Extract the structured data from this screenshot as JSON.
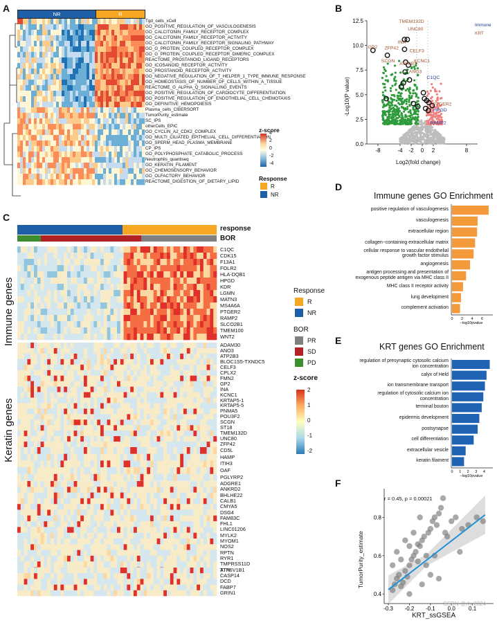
{
  "panels": {
    "A": "A",
    "B": "B",
    "C": "C",
    "D": "D",
    "E": "E",
    "F": "F"
  },
  "panelA": {
    "group_labels": [
      "NR",
      "R"
    ],
    "rows": [
      "Tgd_cells_xCell",
      "GO_POSITIVE_REGULATION_OF_VASCULOGENESIS",
      "GO_CALCITONIN_FAMILY_RECEPTOR_COMPLEX",
      "GO_CALCITONIN_FAMILY_RECEPTOR_ACTIVITY",
      "GO_CALCITONIN_FAMILY_RECEPTOR_SIGNALING_PATHWAY",
      "GO_G_PROTEIN_COUPLED_RECEPTOR_COMPLEX",
      "GO_G_PROTEIN_COUPLED_RECEPTOR_DIMERIC_COMPLEX",
      "REACTOME_PROSTANOID_LIGAND_RECEPTORS",
      "GO_ICOSANOID_RECEPTOR_ACTIVITY",
      "GO_PROSTANOID_RECEPTOR_ACTIVITY",
      "GO_NEGATIVE_REGULATION_OF_T_HELPER_1_TYPE_IMMUNE_RESPONSE",
      "GO_HOMEOSTASIS_OF_NUMBER_OF_CELLS_WITHIN_A_TISSUE",
      "REACTOME_G_ALPHA_Q_SIGNALLING_EVENTS",
      "GO_POSITIVE_REGULATION_OF_CARDIOCYTE_DIFFERENTIATION",
      "GO_POSITIVE_REGULATION_OF_ENDOTHELIAL_CELL_CHEMOTAXIS",
      "GO_DEFINITIVE_HEMOPOIESIS",
      "Plasma_cells_CIBERSORT",
      "TumorPurity_estimate",
      "SC_IPS",
      "otherCells_EPIC",
      "GO_CYCLIN_A2_CDK2_COMPLEX",
      "GO_MULTI_CILIATED_EPITHELIAL_CELL_DIFFERENTIATION",
      "GO_SPERM_HEAD_PLASMA_MEMBRANE",
      "CP_IPS",
      "GO_POLYPHOSPHATE_CATABOLIC_PROCESS",
      "Neutrophils_quantiseq",
      "GO_KERATIN_FILAMENT",
      "GO_CHEMOSENSORY_BEHAVIOR",
      "GO_OLFACTORY_BEHAVIOR",
      "REACTOME_DIGESTION_OF_DIETARY_LIPID"
    ],
    "zscore_title": "z-score",
    "zscore_ticks": [
      "4",
      "2",
      "0",
      "-2",
      "-4"
    ],
    "response_title": "Response",
    "response_items": [
      "R",
      "NR"
    ],
    "colors": {
      "R": "#F5A623",
      "NR": "#1F5FA6"
    }
  },
  "panelB": {
    "legend": [
      "Immune",
      "KRT"
    ],
    "ylabel": "-Log10(P value)",
    "xlabel": "Log2(fold change)",
    "yticks": [
      "0.0",
      "2.5",
      "5.0",
      "7.5",
      "10.0",
      "12.5"
    ],
    "xticks": [
      "-8",
      "-4",
      "-2",
      "0",
      "2",
      "8"
    ],
    "labels_krt": [
      "TMEM132D",
      "UNC80",
      "INA",
      "GP2",
      "ZFP42",
      "CELF3",
      "KCNC1",
      "SCGN",
      "ATP2B3",
      "ANO3",
      "PTGER2"
    ],
    "labels_immune": [
      "C1QC",
      "HPGD",
      "RAMP2"
    ],
    "colors": {
      "Immune": "#1F3A93",
      "KRT": "#A0522D"
    }
  },
  "panelC": {
    "annot_labels": [
      "response",
      "BOR"
    ],
    "row_group_labels": [
      "Immune genes",
      "Keratin genes"
    ],
    "immune_genes": [
      "C1QC",
      "CDK15",
      "F13A1",
      "FOLR2",
      "HLA-DQB1",
      "HPGD",
      "KDR",
      "LGMN",
      "MATN3",
      "MS4A6A",
      "PTGER2",
      "RAMP2",
      "SLCO2B1",
      "TMEM100",
      "WNT2"
    ],
    "keratin_group1": [
      "ADAM30",
      "ANO3",
      "ATP2B3",
      "BLOC1S5-TXNDC5",
      "CELF3",
      "CPLX2",
      "FMN2",
      "GP2",
      "INA",
      "KCNC1",
      "KRTAP5-1",
      "KRTAP5-5",
      "PNMA5",
      "POU3F2",
      "SCGN",
      "ST18",
      "TMEM132D",
      "UNC80",
      "ZFP42"
    ],
    "keratin_group2": [
      "CD5L",
      "HAMP",
      "ITIH3",
      "OAF",
      "PGLYRP2"
    ],
    "keratin_group3": [
      "ADGRE1",
      "ANKRD2",
      "BHLHE22",
      "CALB1",
      "CMYA5",
      "DSG4",
      "FAM83C",
      "FHL1",
      "LINC01206",
      "MYLK2",
      "MYOM1",
      "NOS2",
      "RPTN",
      "RYR1",
      "TMPRSS11D",
      "TTN"
    ],
    "keratin_group4": [
      "ATP6V1B1",
      "CASP14",
      "DCD",
      "FABP7",
      "GRIN1"
    ],
    "response_title": "Response",
    "response_items": [
      "R",
      "NR"
    ],
    "bor_title": "BOR",
    "bor_items": [
      "PR",
      "SD",
      "PD"
    ],
    "bor_colors": {
      "PR": "#7F7F7F",
      "SD": "#B22222",
      "PD": "#3E8E2F"
    },
    "zscore_title": "z-score",
    "zscore_ticks": [
      "2",
      "1",
      "0",
      "-1",
      "-2"
    ]
  },
  "panelD": {
    "title": "Immune genes GO Enrichment",
    "terms": [
      "positive regulation of vasculogenesis",
      "vasculogenesis",
      "extracellular region",
      "collagen−containing extracellular matrix",
      "cellular response to vascular endothelial growth factor stimulus",
      "angiogenesis",
      "antigen processing and presentation of exogenous peptide antigen via MHC class II",
      "MHC class II receptor activity",
      "lung development",
      "complement activation"
    ],
    "values": [
      7.3,
      5.1,
      5.0,
      4.6,
      4.3,
      3.6,
      2.8,
      2.2,
      1.8,
      1.6
    ],
    "xmax": 8,
    "xticks": [
      "0",
      "2",
      "4",
      "6"
    ],
    "xlabel": "−log10pvalue",
    "color": "#F59A3A"
  },
  "panelE": {
    "title": "KRT genes GO Enrichment",
    "terms": [
      "regulation of presynaptic cytosolic calcium ion concentration",
      "calyx of Held",
      "ion transmembrane transport",
      "regulation of cytosolic calcium ion concentration",
      "terminal bouton",
      "epidermis development",
      "postsynapse",
      "cell differentiation",
      "extracellular vesicle",
      "keratin filament"
    ],
    "values": [
      4.7,
      4.3,
      4.1,
      3.9,
      3.7,
      3.4,
      3.2,
      2.7,
      1.7,
      1.5
    ],
    "xmax": 5,
    "xticks": [
      "0",
      "1",
      "2",
      "3",
      "4"
    ],
    "xlabel": "−log10pvalue",
    "color": "#1F63B5"
  },
  "panelF": {
    "annotation": "r = 0.45, p = 0.00021",
    "xlabel": "KRT_ssGSEA",
    "ylabel": "TumorPurity_estimate",
    "xticks": [
      "-0.3",
      "-0.2",
      "-0.1",
      "0.0",
      "0.1"
    ],
    "yticks": [
      "0.4",
      "0.6",
      "0.8"
    ],
    "watermark": "CSDN @rhv2024"
  },
  "chart_data": [
    {
      "type": "bar",
      "title": "Immune genes GO Enrichment",
      "categories": [
        "positive regulation of vasculogenesis",
        "vasculogenesis",
        "extracellular region",
        "collagen−containing extracellular matrix",
        "cellular response to vascular endothelial growth factor stimulus",
        "angiogenesis",
        "antigen processing and presentation of exogenous peptide antigen via MHC class II",
        "MHC class II receptor activity",
        "lung development",
        "complement activation"
      ],
      "values": [
        7.3,
        5.1,
        5.0,
        4.6,
        4.3,
        3.6,
        2.8,
        2.2,
        1.8,
        1.6
      ],
      "xlabel": "−log10pvalue",
      "xlim": [
        0,
        8
      ]
    },
    {
      "type": "bar",
      "title": "KRT genes GO Enrichment",
      "categories": [
        "regulation of presynaptic cytosolic calcium ion concentration",
        "calyx of Held",
        "ion transmembrane transport",
        "regulation of cytosolic calcium ion concentration",
        "terminal bouton",
        "epidermis development",
        "postsynapse",
        "cell differentiation",
        "extracellular vesicle",
        "keratin filament"
      ],
      "values": [
        4.7,
        4.3,
        4.1,
        3.9,
        3.7,
        3.4,
        3.2,
        2.7,
        1.7,
        1.5
      ],
      "xlabel": "−log10pvalue",
      "xlim": [
        0,
        5
      ]
    },
    {
      "type": "scatter",
      "title": "",
      "xlabel": "KRT_ssGSEA",
      "ylabel": "TumorPurity_estimate",
      "xlim": [
        -0.32,
        0.2
      ],
      "ylim": [
        0.35,
        0.95
      ],
      "points": [
        [
          -0.28,
          0.42
        ],
        [
          -0.27,
          0.45
        ],
        [
          -0.26,
          0.48
        ],
        [
          -0.25,
          0.5
        ],
        [
          -0.24,
          0.44
        ],
        [
          -0.23,
          0.46
        ],
        [
          -0.22,
          0.52
        ],
        [
          -0.21,
          0.49
        ],
        [
          -0.2,
          0.55
        ],
        [
          -0.19,
          0.58
        ],
        [
          -0.18,
          0.6
        ],
        [
          -0.17,
          0.62
        ],
        [
          -0.16,
          0.57
        ],
        [
          -0.15,
          0.65
        ],
        [
          -0.14,
          0.68
        ],
        [
          -0.13,
          0.7
        ],
        [
          -0.12,
          0.6
        ],
        [
          -0.11,
          0.72
        ],
        [
          -0.1,
          0.74
        ],
        [
          -0.09,
          0.78
        ],
        [
          -0.08,
          0.8
        ],
        [
          -0.07,
          0.76
        ],
        [
          -0.06,
          0.82
        ],
        [
          -0.05,
          0.85
        ],
        [
          -0.04,
          0.9
        ],
        [
          -0.03,
          0.72
        ],
        [
          -0.02,
          0.7
        ],
        [
          0.0,
          0.78
        ],
        [
          0.02,
          0.8
        ],
        [
          0.05,
          0.74
        ],
        [
          0.08,
          0.76
        ],
        [
          0.12,
          0.8
        ],
        [
          0.15,
          0.78
        ],
        [
          -0.26,
          0.62
        ],
        [
          -0.22,
          0.68
        ],
        [
          -0.18,
          0.72
        ],
        [
          -0.15,
          0.8
        ],
        [
          -0.12,
          0.55
        ],
        [
          -0.1,
          0.5
        ],
        [
          -0.06,
          0.48
        ],
        [
          -0.24,
          0.58
        ],
        [
          -0.2,
          0.65
        ],
        [
          -0.16,
          0.66
        ],
        [
          -0.28,
          0.55
        ],
        [
          -0.2,
          0.4
        ],
        [
          -0.14,
          0.45
        ],
        [
          -0.08,
          0.6
        ],
        [
          0.04,
          0.62
        ]
      ],
      "annotation": "r = 0.45, p = 0.00021"
    }
  ]
}
